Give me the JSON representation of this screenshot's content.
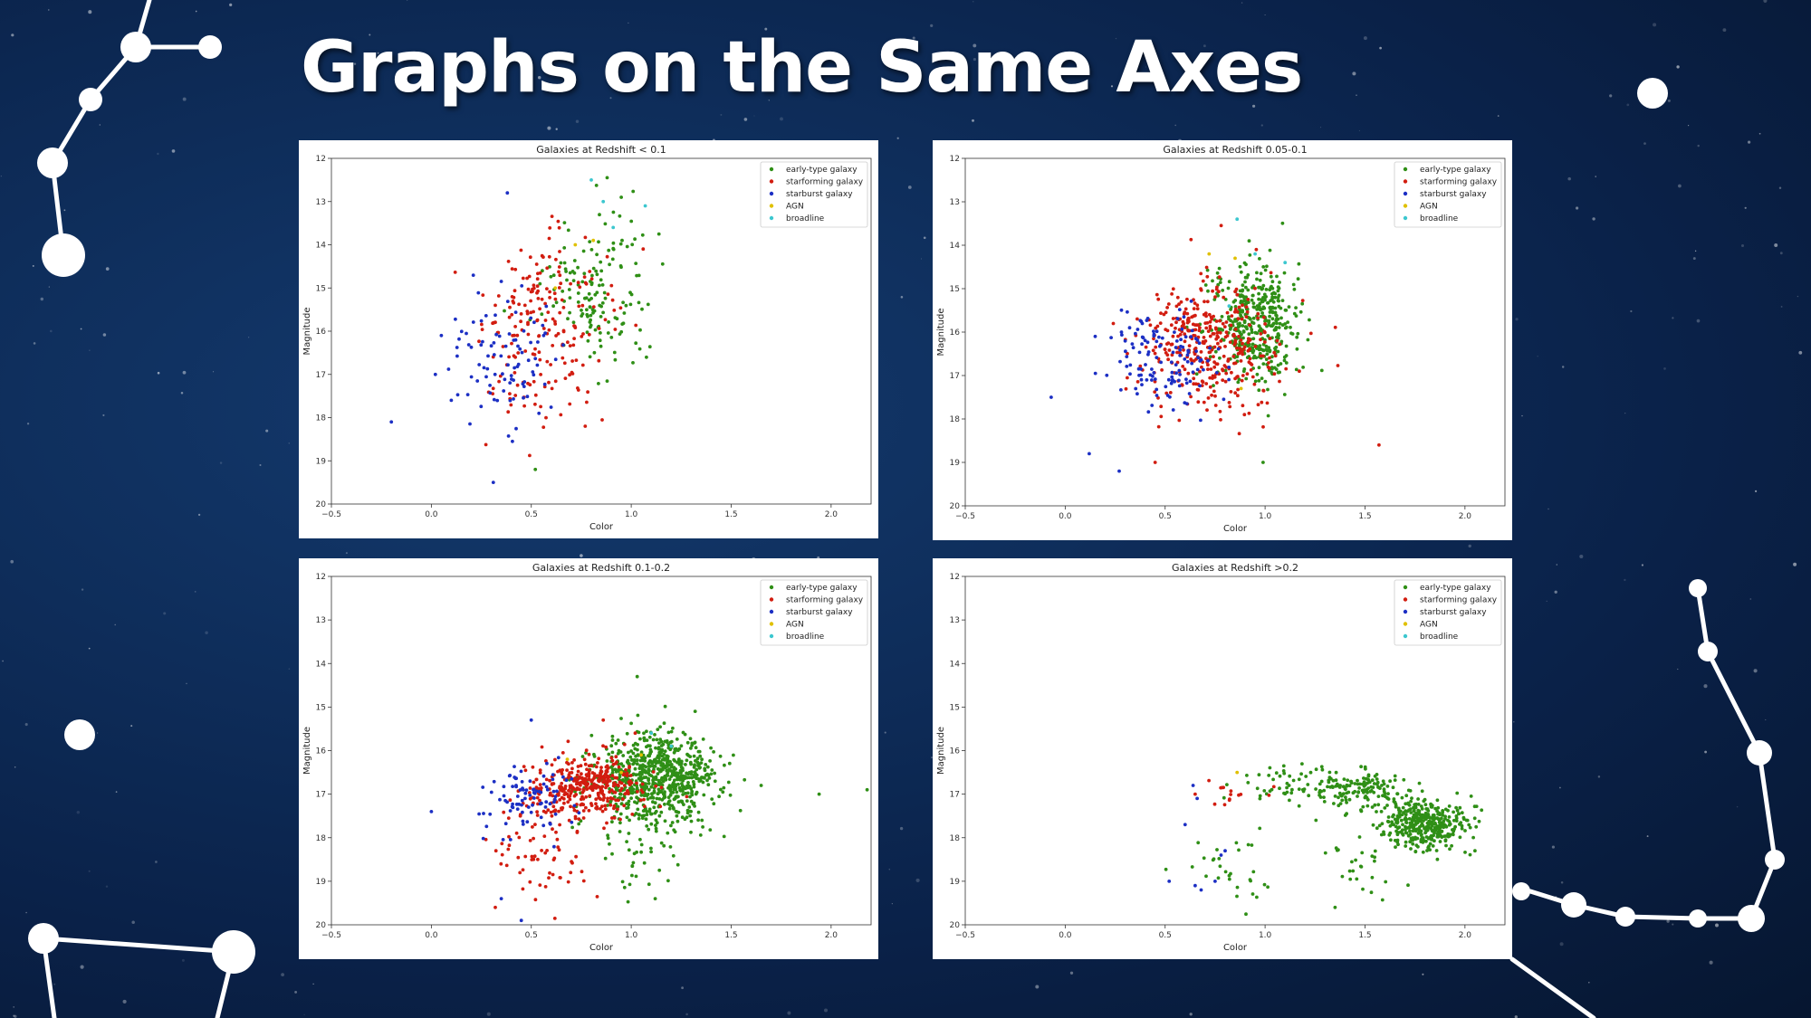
{
  "slide": {
    "title": "Graphs on the Same Axes"
  },
  "colors": {
    "early-type galaxy": "#2f8f16",
    "starforming galaxy": "#d21d10",
    "starburst galaxy": "#1c2fc4",
    "AGN": "#e0c000",
    "broadline": "#3cc7cf"
  },
  "chart_data": [
    {
      "type": "scatter",
      "title": "Galaxies at Redshift < 0.1",
      "xlabel": "Color",
      "ylabel": "Magnitude",
      "xlim": [
        -0.5,
        2.2
      ],
      "ylim": [
        20,
        12
      ],
      "xticks": [
        "−0.5",
        "0.0",
        "0.5",
        "1.0",
        "1.5",
        "2.0"
      ],
      "yticks": [
        "12",
        "13",
        "14",
        "15",
        "16",
        "17",
        "18",
        "19",
        "20"
      ],
      "legend": {
        "position": "top-right",
        "entries": [
          "early-type galaxy",
          "starforming galaxy",
          "starburst galaxy",
          "AGN",
          "broadline"
        ]
      },
      "series": [
        {
          "name": "early-type galaxy",
          "clusters": [
            {
              "cx": 0.82,
              "cy": 15.2,
              "sx": 0.13,
              "sy": 0.9,
              "n": 150
            }
          ],
          "points": [
            [
              0.52,
              19.2
            ],
            [
              0.95,
              12.9
            ]
          ]
        },
        {
          "name": "starforming galaxy",
          "clusters": [
            {
              "cx": 0.58,
              "cy": 15.9,
              "sx": 0.16,
              "sy": 1.0,
              "n": 200
            }
          ],
          "points": [
            [
              0.77,
              18.2
            ],
            [
              0.32,
              15.4
            ]
          ]
        },
        {
          "name": "starburst galaxy",
          "clusters": [
            {
              "cx": 0.36,
              "cy": 16.5,
              "sx": 0.14,
              "sy": 0.8,
              "n": 90
            }
          ],
          "points": [
            [
              -0.2,
              18.1
            ],
            [
              0.38,
              12.8
            ],
            [
              0.31,
              19.5
            ],
            [
              0.1,
              17.6
            ],
            [
              0.02,
              17.0
            ],
            [
              0.05,
              16.1
            ]
          ]
        },
        {
          "name": "AGN",
          "clusters": [],
          "points": [
            [
              0.72,
              14.0
            ],
            [
              0.81,
              13.9
            ],
            [
              0.62,
              15.0
            ]
          ]
        },
        {
          "name": "broadline",
          "clusters": [],
          "points": [
            [
              0.8,
              12.5
            ],
            [
              0.86,
              13.0
            ],
            [
              1.07,
              13.1
            ],
            [
              0.91,
              13.6
            ]
          ]
        }
      ]
    },
    {
      "type": "scatter",
      "title": "Galaxies at Redshift 0.05-0.1",
      "xlabel": "Color",
      "ylabel": "Magnitude",
      "xlim": [
        -0.5,
        2.2
      ],
      "ylim": [
        20,
        12
      ],
      "xticks": [
        "−0.5",
        "0.0",
        "0.5",
        "1.0",
        "1.5",
        "2.0"
      ],
      "yticks": [
        "12",
        "13",
        "14",
        "15",
        "16",
        "17",
        "18",
        "19",
        "20"
      ],
      "legend": {
        "position": "top-right",
        "entries": [
          "early-type galaxy",
          "starforming galaxy",
          "starburst galaxy",
          "AGN",
          "broadline"
        ]
      },
      "series": [
        {
          "name": "early-type galaxy",
          "clusters": [
            {
              "cx": 0.95,
              "cy": 15.8,
              "sx": 0.11,
              "sy": 0.65,
              "n": 420
            }
          ],
          "points": [
            [
              0.99,
              19.0
            ],
            [
              0.92,
              13.9
            ]
          ]
        },
        {
          "name": "starforming galaxy",
          "clusters": [
            {
              "cx": 0.72,
              "cy": 16.3,
              "sx": 0.17,
              "sy": 0.75,
              "n": 380
            }
          ],
          "points": [
            [
              1.57,
              18.6
            ],
            [
              0.45,
              19.0
            ]
          ]
        },
        {
          "name": "starburst galaxy",
          "clusters": [
            {
              "cx": 0.5,
              "cy": 16.7,
              "sx": 0.14,
              "sy": 0.5,
              "n": 130
            }
          ],
          "points": [
            [
              -0.07,
              17.5
            ],
            [
              0.27,
              19.2
            ],
            [
              0.15,
              16.1
            ],
            [
              0.12,
              18.8
            ]
          ]
        },
        {
          "name": "AGN",
          "clusters": [],
          "points": [
            [
              0.85,
              14.3
            ],
            [
              0.72,
              14.2
            ],
            [
              0.88,
              17.3
            ]
          ]
        },
        {
          "name": "broadline",
          "clusters": [],
          "points": [
            [
              0.86,
              13.4
            ],
            [
              0.95,
              14.2
            ],
            [
              1.1,
              14.4
            ],
            [
              0.82,
              15.4
            ]
          ]
        }
      ]
    },
    {
      "type": "scatter",
      "title": "Galaxies at Redshift 0.1-0.2",
      "xlabel": "Color",
      "ylabel": "Magnitude",
      "xlim": [
        -0.5,
        2.2
      ],
      "ylim": [
        20,
        12
      ],
      "xticks": [
        "−0.5",
        "0.0",
        "0.5",
        "1.0",
        "1.5",
        "2.0"
      ],
      "yticks": [
        "12",
        "13",
        "14",
        "15",
        "16",
        "17",
        "18",
        "19",
        "20"
      ],
      "legend": {
        "position": "top-right",
        "entries": [
          "early-type galaxy",
          "starforming galaxy",
          "starburst galaxy",
          "AGN",
          "broadline"
        ]
      },
      "series": [
        {
          "name": "early-type galaxy",
          "clusters": [
            {
              "cx": 1.13,
              "cy": 16.6,
              "sx": 0.15,
              "sy": 0.5,
              "n": 700
            },
            {
              "cx": 1.02,
              "cy": 18.0,
              "sx": 0.12,
              "sy": 0.6,
              "n": 60
            }
          ],
          "points": [
            [
              1.65,
              16.8
            ],
            [
              1.94,
              17.0
            ],
            [
              2.18,
              16.9
            ],
            [
              1.03,
              14.3
            ],
            [
              1.12,
              19.4
            ]
          ]
        },
        {
          "name": "starforming galaxy",
          "clusters": [
            {
              "cx": 0.78,
              "cy": 16.8,
              "sx": 0.15,
              "sy": 0.35,
              "n": 360
            },
            {
              "cx": 0.55,
              "cy": 18.2,
              "sx": 0.12,
              "sy": 0.7,
              "n": 70
            }
          ],
          "points": [
            [
              0.32,
              19.6
            ],
            [
              0.86,
              15.3
            ],
            [
              1.02,
              15.6
            ]
          ]
        },
        {
          "name": "starburst galaxy",
          "clusters": [
            {
              "cx": 0.48,
              "cy": 17.1,
              "sx": 0.1,
              "sy": 0.45,
              "n": 90
            }
          ],
          "points": [
            [
              0.0,
              17.4
            ],
            [
              0.45,
              19.9
            ],
            [
              0.35,
              19.4
            ],
            [
              0.5,
              15.3
            ]
          ]
        },
        {
          "name": "AGN",
          "clusters": [],
          "points": [
            [
              0.68,
              16.2
            ],
            [
              0.95,
              16.5
            ],
            [
              1.05,
              16.1
            ]
          ]
        },
        {
          "name": "broadline",
          "clusters": [],
          "points": [
            [
              1.1,
              15.6
            ],
            [
              1.2,
              15.9
            ]
          ]
        }
      ]
    },
    {
      "type": "scatter",
      "title": "Galaxies at Redshift >0.2",
      "xlabel": "Color",
      "ylabel": "Magnitude",
      "xlim": [
        -0.5,
        2.2
      ],
      "ylim": [
        20,
        12
      ],
      "xticks": [
        "−0.5",
        "0.0",
        "0.5",
        "1.0",
        "1.5",
        "2.0"
      ],
      "yticks": [
        "12",
        "13",
        "14",
        "15",
        "16",
        "17",
        "18",
        "19",
        "20"
      ],
      "legend": {
        "position": "top-right",
        "entries": [
          "early-type galaxy",
          "starforming galaxy",
          "starburst galaxy",
          "AGN",
          "broadline"
        ]
      },
      "series": [
        {
          "name": "early-type galaxy",
          "clusters": [
            {
              "cx": 1.8,
              "cy": 17.7,
              "sx": 0.11,
              "sy": 0.3,
              "n": 380
            },
            {
              "cx": 1.45,
              "cy": 16.9,
              "sx": 0.14,
              "sy": 0.25,
              "n": 160
            },
            {
              "cx": 1.08,
              "cy": 16.8,
              "sx": 0.12,
              "sy": 0.2,
              "n": 40
            },
            {
              "cx": 0.85,
              "cy": 18.7,
              "sx": 0.12,
              "sy": 0.4,
              "n": 30
            },
            {
              "cx": 1.45,
              "cy": 18.7,
              "sx": 0.1,
              "sy": 0.35,
              "n": 25
            }
          ],
          "points": [
            [
              1.35,
              19.6
            ],
            [
              2.05,
              18.3
            ]
          ]
        },
        {
          "name": "starforming galaxy",
          "clusters": [
            {
              "cx": 0.8,
              "cy": 16.95,
              "sx": 0.1,
              "sy": 0.15,
              "n": 14
            }
          ],
          "points": [
            [
              0.65,
              17.0
            ]
          ]
        },
        {
          "name": "starburst galaxy",
          "clusters": [],
          "points": [
            [
              0.52,
              19.0
            ],
            [
              0.6,
              17.7
            ],
            [
              0.65,
              19.1
            ],
            [
              0.68,
              19.2
            ],
            [
              0.78,
              18.4
            ],
            [
              0.64,
              16.8
            ],
            [
              0.66,
              17.1
            ],
            [
              0.8,
              18.3
            ],
            [
              0.75,
              19.0
            ]
          ]
        },
        {
          "name": "AGN",
          "clusters": [],
          "points": [
            [
              0.86,
              16.5
            ]
          ]
        },
        {
          "name": "broadline",
          "clusters": [],
          "points": []
        }
      ]
    }
  ]
}
